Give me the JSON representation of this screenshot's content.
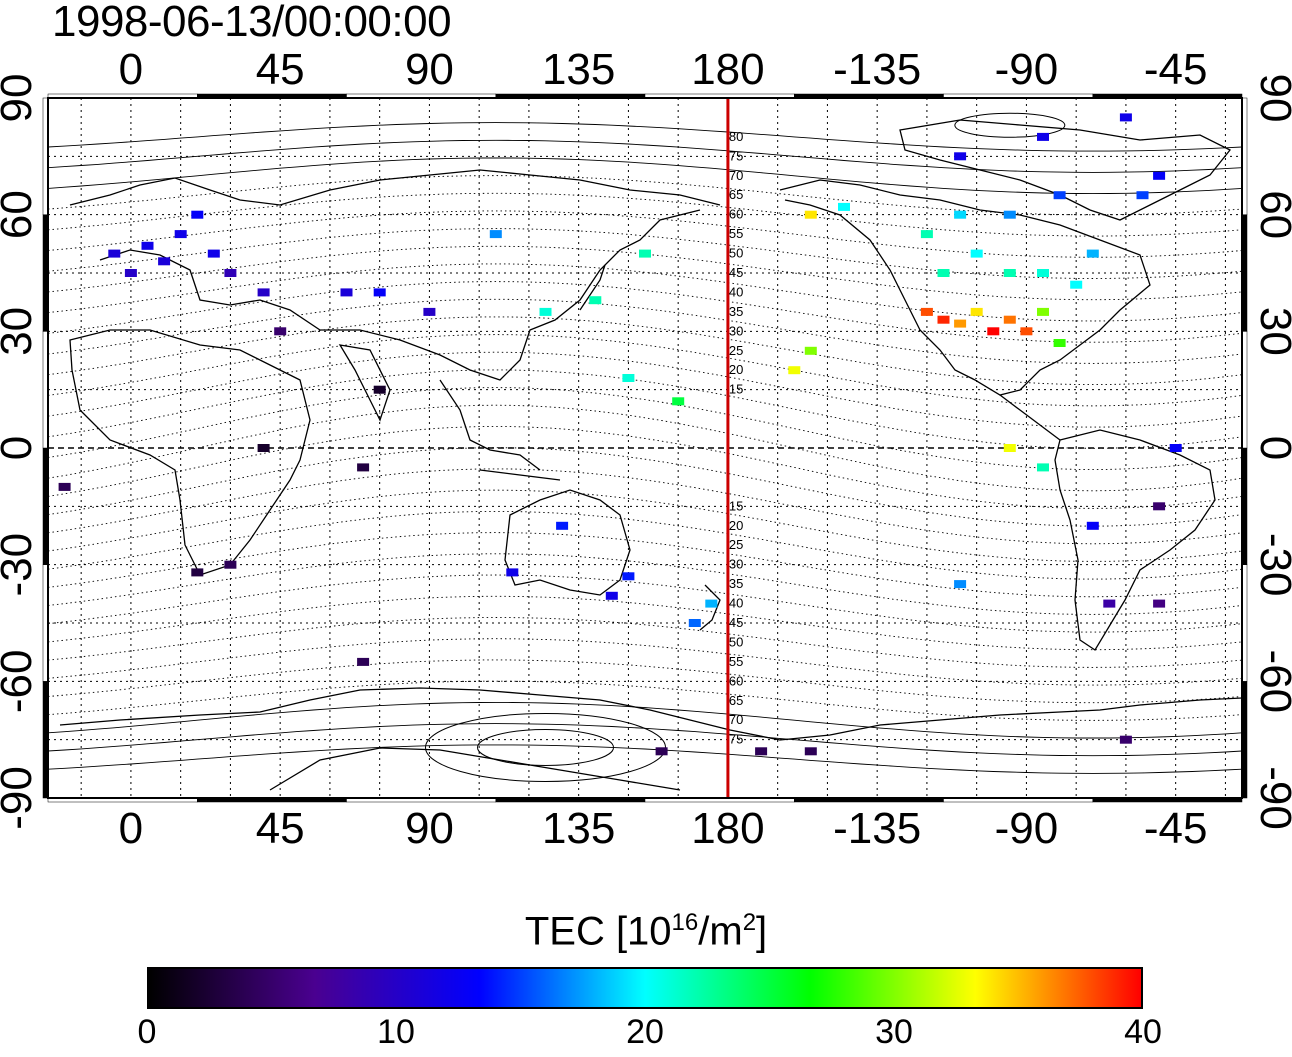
{
  "header": {
    "title": "1998-06-13/00:00:00"
  },
  "map": {
    "projection": "equirectangular",
    "lon_range": [
      -25,
      335
    ],
    "lat_range": [
      -90,
      90
    ],
    "top_lon_ticks": [
      "0",
      "45",
      "90",
      "135",
      "180",
      "-135",
      "-90",
      "-45"
    ],
    "bottom_lon_ticks": [
      "0",
      "45",
      "90",
      "135",
      "180",
      "-135",
      "-90",
      "-45"
    ],
    "left_lat_ticks": [
      "90",
      "60",
      "30",
      "0",
      "-30",
      "-60",
      "-90"
    ],
    "right_lat_ticks": [
      "90",
      "60",
      "30",
      "0",
      "-30",
      "-60",
      "-90"
    ],
    "dateline_lon": 180,
    "dateline_color": "#cc0000",
    "dateline_lat_labels": [
      "80",
      "75",
      "70",
      "65",
      "60",
      "55",
      "50",
      "45",
      "40",
      "35",
      "30",
      "25",
      "20",
      "15",
      "15",
      "20",
      "25",
      "30",
      "35",
      "40",
      "45",
      "50",
      "55",
      "60",
      "65",
      "70",
      "75"
    ],
    "grid": "dotted 15 degrees",
    "tec_points": [
      {
        "lon": 5,
        "lat": 52,
        "tec": 12
      },
      {
        "lon": 10,
        "lat": 48,
        "tec": 11
      },
      {
        "lon": 15,
        "lat": 55,
        "tec": 12
      },
      {
        "lon": 20,
        "lat": 60,
        "tec": 13
      },
      {
        "lon": -5,
        "lat": 50,
        "tec": 11
      },
      {
        "lon": 0,
        "lat": 45,
        "tec": 10
      },
      {
        "lon": 25,
        "lat": 50,
        "tec": 12
      },
      {
        "lon": 30,
        "lat": 45,
        "tec": 9
      },
      {
        "lon": 40,
        "lat": 40,
        "tec": 10
      },
      {
        "lon": 75,
        "lat": 40,
        "tec": 13
      },
      {
        "lon": 65,
        "lat": 40,
        "tec": 11
      },
      {
        "lon": 90,
        "lat": 35,
        "tec": 10
      },
      {
        "lon": 125,
        "lat": 35,
        "tec": 21
      },
      {
        "lon": 140,
        "lat": 38,
        "tec": 22
      },
      {
        "lon": 155,
        "lat": 50,
        "tec": 22
      },
      {
        "lon": 110,
        "lat": 55,
        "tec": 17
      },
      {
        "lon": 150,
        "lat": 18,
        "tec": 21
      },
      {
        "lon": 165,
        "lat": 12,
        "tec": 25
      },
      {
        "lon": 30,
        "lat": -30,
        "tec": 4
      },
      {
        "lon": 20,
        "lat": -32,
        "tec": 3
      },
      {
        "lon": 70,
        "lat": -55,
        "tec": 4
      },
      {
        "lon": 75,
        "lat": 15,
        "tec": 2
      },
      {
        "lon": 45,
        "lat": 30,
        "tec": 5
      },
      {
        "lon": 40,
        "lat": 0,
        "tec": 2
      },
      {
        "lon": 70,
        "lat": -5,
        "tec": 3
      },
      {
        "lon": -20,
        "lat": -10,
        "tec": 4
      },
      {
        "lon": 115,
        "lat": -32,
        "tec": 12
      },
      {
        "lon": 130,
        "lat": -20,
        "tec": 14
      },
      {
        "lon": 145,
        "lat": -38,
        "tec": 12
      },
      {
        "lon": 150,
        "lat": -33,
        "tec": 14
      },
      {
        "lon": 175,
        "lat": -40,
        "tec": 18
      },
      {
        "lon": 170,
        "lat": -45,
        "tec": 16
      },
      {
        "lon": 160,
        "lat": -78,
        "tec": 4
      },
      {
        "lon": 190,
        "lat": -78,
        "tec": 4
      },
      {
        "lon": 205,
        "lat": -78,
        "tec": 4
      },
      {
        "lon": 200,
        "lat": 20,
        "tec": 33
      },
      {
        "lon": 205,
        "lat": 25,
        "tec": 30
      },
      {
        "lon": 205,
        "lat": 60,
        "tec": 34
      },
      {
        "lon": 215,
        "lat": 62,
        "tec": 20
      },
      {
        "lon": 240,
        "lat": 35,
        "tec": 38
      },
      {
        "lon": 245,
        "lat": 33,
        "tec": 39
      },
      {
        "lon": 250,
        "lat": 32,
        "tec": 36
      },
      {
        "lon": 255,
        "lat": 35,
        "tec": 34
      },
      {
        "lon": 260,
        "lat": 30,
        "tec": 40
      },
      {
        "lon": 265,
        "lat": 33,
        "tec": 37
      },
      {
        "lon": 270,
        "lat": 30,
        "tec": 38
      },
      {
        "lon": 275,
        "lat": 35,
        "tec": 30
      },
      {
        "lon": 280,
        "lat": 27,
        "tec": 28
      },
      {
        "lon": 245,
        "lat": 45,
        "tec": 22
      },
      {
        "lon": 255,
        "lat": 50,
        "tec": 20
      },
      {
        "lon": 265,
        "lat": 45,
        "tec": 22
      },
      {
        "lon": 275,
        "lat": 45,
        "tec": 21
      },
      {
        "lon": 285,
        "lat": 42,
        "tec": 20
      },
      {
        "lon": 290,
        "lat": 50,
        "tec": 18
      },
      {
        "lon": 240,
        "lat": 55,
        "tec": 22
      },
      {
        "lon": 250,
        "lat": 60,
        "tec": 19
      },
      {
        "lon": 265,
        "lat": 60,
        "tec": 17
      },
      {
        "lon": 280,
        "lat": 65,
        "tec": 15
      },
      {
        "lon": 250,
        "lat": 75,
        "tec": 12
      },
      {
        "lon": 275,
        "lat": 80,
        "tec": 12
      },
      {
        "lon": 300,
        "lat": 85,
        "tec": 12
      },
      {
        "lon": 310,
        "lat": 70,
        "tec": 13
      },
      {
        "lon": 305,
        "lat": 65,
        "tec": 15
      },
      {
        "lon": 265,
        "lat": 0,
        "tec": 33
      },
      {
        "lon": 275,
        "lat": -5,
        "tec": 22
      },
      {
        "lon": 290,
        "lat": -20,
        "tec": 13
      },
      {
        "lon": 295,
        "lat": -40,
        "tec": 8
      },
      {
        "lon": 310,
        "lat": -40,
        "tec": 6
      },
      {
        "lon": 310,
        "lat": -15,
        "tec": 5
      },
      {
        "lon": 315,
        "lat": 0,
        "tec": 13
      },
      {
        "lon": 250,
        "lat": -35,
        "tec": 17
      },
      {
        "lon": 300,
        "lat": -75,
        "tec": 5
      }
    ]
  },
  "colorbar": {
    "title_prefix": "TEC  [10",
    "title_exp1": "16",
    "title_mid": "/m",
    "title_exp2": "2",
    "title_suffix": "]",
    "min": 0,
    "max": 40,
    "tick_labels": [
      "0",
      "10",
      "20",
      "30",
      "40"
    ],
    "stops": [
      "#000000",
      "#4a0090",
      "#0000ff",
      "#00ffff",
      "#00ff00",
      "#ffff00",
      "#ff0000"
    ]
  }
}
